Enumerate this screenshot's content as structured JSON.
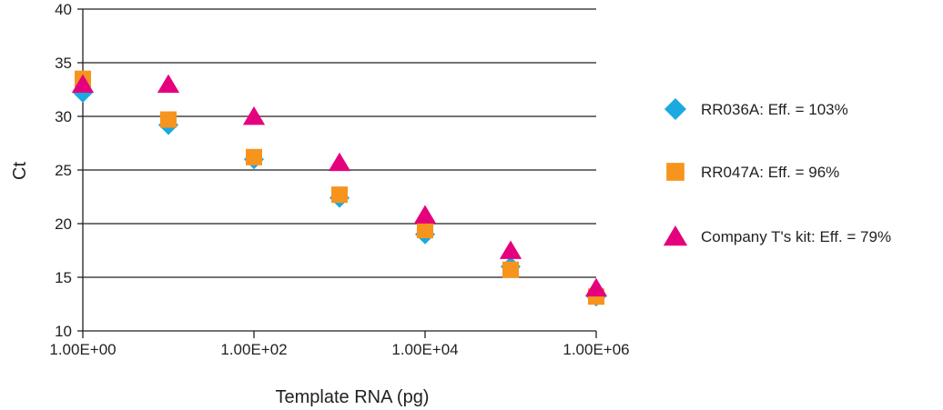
{
  "chart_data": {
    "type": "scatter",
    "title": "",
    "xlabel": "Template RNA (pg)",
    "ylabel": "Ct",
    "x_scale": "log",
    "xlim": [
      1,
      1000000
    ],
    "ylim": [
      10,
      40
    ],
    "x_tick_values": [
      1,
      100,
      10000,
      1000000
    ],
    "x_tick_labels": [
      "1.00E+00",
      "1.00E+02",
      "1.00E+04",
      "1.00E+06"
    ],
    "y_ticks": [
      10,
      15,
      20,
      25,
      30,
      35,
      40
    ],
    "grid": "horizontal",
    "legend_position": "right",
    "series": [
      {
        "name": "RR036A: Eff. = 103%",
        "marker": "diamond",
        "color": "#1ba9e0",
        "x": [
          1,
          10,
          100,
          1000,
          10000,
          100000,
          1000000
        ],
        "y": [
          32.2,
          29.2,
          26.0,
          22.4,
          19.0,
          16.0,
          13.2
        ]
      },
      {
        "name": "RR047A: Eff. = 96%",
        "marker": "square",
        "color": "#f7941d",
        "x": [
          1,
          10,
          100,
          1000,
          10000,
          100000,
          1000000
        ],
        "y": [
          33.5,
          29.7,
          26.2,
          22.7,
          19.4,
          15.7,
          13.2
        ]
      },
      {
        "name": "Company T's kit: Eff. = 79%",
        "marker": "triangle",
        "color": "#e5007e",
        "x": [
          1,
          10,
          100,
          1000,
          10000,
          100000,
          1000000
        ],
        "y": [
          33.0,
          33.0,
          30.0,
          25.7,
          20.8,
          17.5,
          14.0
        ]
      }
    ]
  }
}
